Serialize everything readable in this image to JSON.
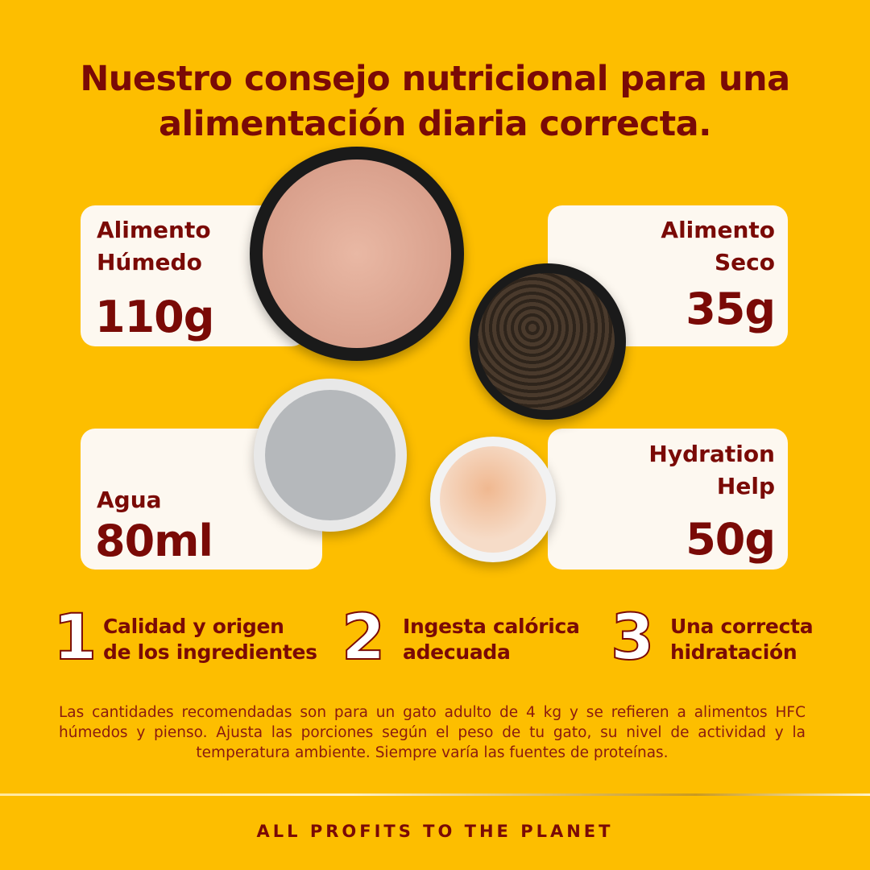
{
  "title": {
    "line1": "Nuestro consejo nutricional para una",
    "line2": "alimentación diaria correcta."
  },
  "cards": {
    "wet": {
      "label1": "Alimento",
      "label2": "Húmedo",
      "value": "110g"
    },
    "dry": {
      "label1": "Alimento",
      "label2": "Seco",
      "value": "35g"
    },
    "water": {
      "label1": "Agua",
      "value": "80ml"
    },
    "hydration": {
      "label1": "Hydration",
      "label2": "Help",
      "value": "50g"
    }
  },
  "steps": [
    {
      "number": "1",
      "line1": "Calidad y origen",
      "line2": "de los ingredientes"
    },
    {
      "number": "2",
      "line1": "Ingesta calórica",
      "line2": "adecuada"
    },
    {
      "number": "3",
      "line1": "Una correcta",
      "line2": "hidratación"
    }
  ],
  "note": "Las cantidades recomendadas son para un gato adulto de 4 kg y se refieren a alimentos HFC húmedos y pienso. Ajusta las porciones según el peso de tu gato, su nivel de actividad y la temperatura ambiente. Siempre varía las fuentes de proteínas.",
  "footer": "ALL PROFITS TO THE PLANET",
  "colors": {
    "background": "#FDBE00",
    "text": "#7A0A06",
    "card": "#FDF8F0"
  }
}
